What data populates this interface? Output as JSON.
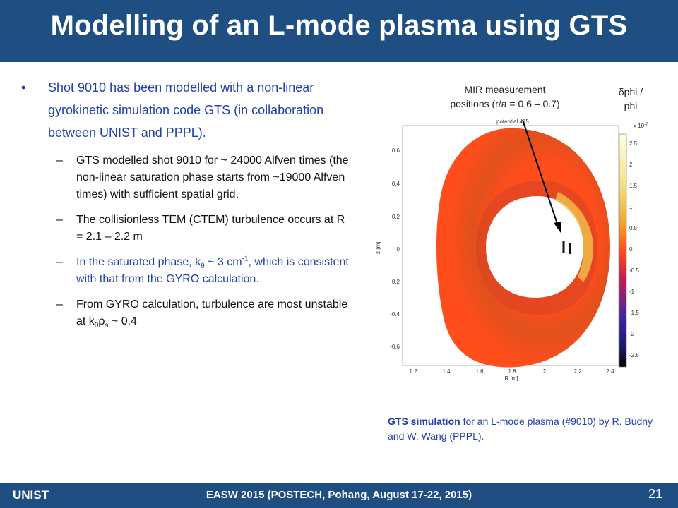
{
  "slide": {
    "title": "Modelling of an L-mode plasma using GTS",
    "footer_left": "UNIST",
    "footer_center": "EASW 2015 (POSTECH, Pohang, August 17-22, 2015)",
    "page_number": "21"
  },
  "bullets": {
    "main": "Shot 9010 has been modelled with a non-linear gyrokinetic simulation code GTS (in collaboration between UNIST and PPPL).",
    "sub1": "GTS modelled shot 9010 for ~ 24000 Alfven times (the non-linear saturation phase starts from ~19000 Alfven times) with sufficient spatial grid.",
    "sub2": "The collisionless TEM (CTEM) turbulence occurs at R = 2.1 – 2.2 m",
    "sub3_pre": "In the saturated phase, k",
    "sub3_sub": "θ",
    "sub3_mid": " ~ 3 cm",
    "sub3_sup": "-1",
    "sub3_post": ", which is consistent with that from the GYRO calculation.",
    "sub4_pre": "From GYRO calculation, turbulence are most unstable at k",
    "sub4_sub1": "θ",
    "sub4_rho": "ρ",
    "sub4_sub2": "s",
    "sub4_post": " ~ 0.4"
  },
  "figure": {
    "mir_label_line1": "MIR measurement",
    "mir_label_line2": "positions (r/a = 0.6 – 0.7)",
    "dphi_label_line1": "δphi /",
    "dphi_label_line2": "phi",
    "plot_title": "potential 475",
    "xlabel": "R [m]",
    "ylabel": "z [m]",
    "x_ticks": [
      "1.2",
      "1.4",
      "1.6",
      "1.8",
      "2",
      "2.2",
      "2.4"
    ],
    "y_ticks": [
      "0.6",
      "0.4",
      "0.2",
      "0",
      "-0.2",
      "-0.4",
      "-0.6"
    ],
    "colorbar_exp": "x 10",
    "colorbar_exp_sup": "-7",
    "colorbar_ticks": [
      "2.5",
      "2",
      "1.5",
      "1",
      "0.5",
      "0",
      "-0.5",
      "-1",
      "-1.5",
      "-2",
      "-2.5"
    ],
    "colors": {
      "plasma": "#ff4d1c",
      "header": "#1f4e82",
      "text_blue": "#1f3fae"
    }
  },
  "caption": {
    "bold": "GTS simulation",
    "rest": " for an L-mode plasma (#9010) by R. Budny and W. Wang (PPPL)."
  }
}
